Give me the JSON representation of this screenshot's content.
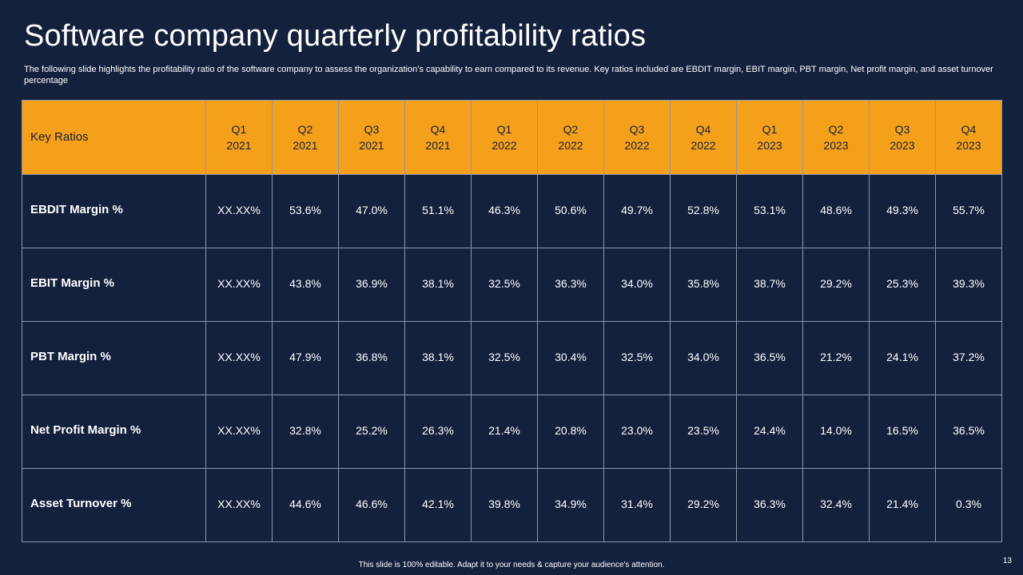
{
  "slide": {
    "title": "Software company quarterly profitability ratios",
    "subtitle": "The following slide highlights the profitability ratio of the software company to assess the organization’s capability to earn compared to its revenue. Key ratios included are EBDIT margin, EBIT margin, PBT margin, Net profit margin, and asset turnover percentage",
    "footer": "This slide is 100% editable. Adapt it to your needs & capture your audience's attention.",
    "page_number": "13"
  },
  "table": {
    "key_header": "Key Ratios",
    "columns": [
      {
        "q": "Q1",
        "year": "2021"
      },
      {
        "q": "Q2",
        "year": "2021"
      },
      {
        "q": "Q3",
        "year": "2021"
      },
      {
        "q": "Q4",
        "year": "2021"
      },
      {
        "q": "Q1",
        "year": "2022"
      },
      {
        "q": "Q2",
        "year": "2022"
      },
      {
        "q": "Q3",
        "year": "2022"
      },
      {
        "q": "Q4",
        "year": "2022"
      },
      {
        "q": "Q1",
        "year": "2023"
      },
      {
        "q": "Q2",
        "year": "2023"
      },
      {
        "q": "Q3",
        "year": "2023"
      },
      {
        "q": "Q4",
        "year": "2023"
      }
    ],
    "rows": [
      {
        "label": "EBDIT Margin %",
        "values": [
          "XX.XX%",
          "53.6%",
          "47.0%",
          "51.1%",
          "46.3%",
          "50.6%",
          "49.7%",
          "52.8%",
          "53.1%",
          "48.6%",
          "49.3%",
          "55.7%"
        ]
      },
      {
        "label": "EBIT Margin %",
        "values": [
          "XX.XX%",
          "43.8%",
          "36.9%",
          "38.1%",
          "32.5%",
          "36.3%",
          "34.0%",
          "35.8%",
          "38.7%",
          "29.2%",
          "25.3%",
          "39.3%"
        ]
      },
      {
        "label": "PBT Margin %",
        "values": [
          "XX.XX%",
          "47.9%",
          "36.8%",
          "38.1%",
          "32.5%",
          "30.4%",
          "32.5%",
          "34.0%",
          "36.5%",
          "21.2%",
          "24.1%",
          "37.2%"
        ]
      },
      {
        "label": "Net Profit Margin %",
        "values": [
          "XX.XX%",
          "32.8%",
          "25.2%",
          "26.3%",
          "21.4%",
          "20.8%",
          "23.0%",
          "23.5%",
          "24.4%",
          "14.0%",
          "16.5%",
          "36.5%"
        ]
      },
      {
        "label": "Asset Turnover %",
        "values": [
          "XX.XX%",
          "44.6%",
          "46.6%",
          "42.1%",
          "39.8%",
          "34.9%",
          "31.4%",
          "29.2%",
          "36.3%",
          "32.4%",
          "21.4%",
          "0.3%"
        ]
      }
    ]
  },
  "colors": {
    "background": "#14213d",
    "header_fill": "#f5a01a",
    "grid_line": "#8e97aa",
    "text": "#ffffff"
  }
}
